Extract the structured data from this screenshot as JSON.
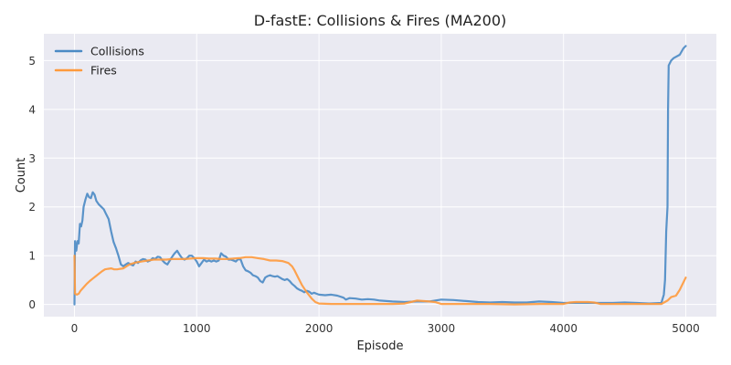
{
  "chart_data": {
    "type": "line",
    "title": "D-fastE: Collisions & Fires (MA200)",
    "xlabel": "Episode",
    "ylabel": "Count",
    "xlim": [
      -250,
      5250
    ],
    "ylim": [
      -0.25,
      5.55
    ],
    "xticks": [
      0,
      1000,
      2000,
      3000,
      4000,
      5000
    ],
    "yticks": [
      0,
      1,
      2,
      3,
      4,
      5
    ],
    "grid": true,
    "legend": "top-left",
    "series": [
      {
        "name": "Collisions",
        "color": "#4a8ac4",
        "points": [
          [
            0,
            0.0
          ],
          [
            5,
            1.3
          ],
          [
            15,
            1.1
          ],
          [
            25,
            1.3
          ],
          [
            35,
            1.25
          ],
          [
            45,
            1.65
          ],
          [
            55,
            1.6
          ],
          [
            65,
            1.72
          ],
          [
            75,
            2.0
          ],
          [
            90,
            2.15
          ],
          [
            105,
            2.27
          ],
          [
            120,
            2.2
          ],
          [
            135,
            2.18
          ],
          [
            150,
            2.3
          ],
          [
            165,
            2.25
          ],
          [
            180,
            2.12
          ],
          [
            200,
            2.05
          ],
          [
            220,
            2.0
          ],
          [
            240,
            1.95
          ],
          [
            260,
            1.85
          ],
          [
            280,
            1.75
          ],
          [
            300,
            1.5
          ],
          [
            320,
            1.28
          ],
          [
            340,
            1.15
          ],
          [
            360,
            1.0
          ],
          [
            380,
            0.82
          ],
          [
            400,
            0.78
          ],
          [
            420,
            0.82
          ],
          [
            440,
            0.85
          ],
          [
            460,
            0.82
          ],
          [
            480,
            0.8
          ],
          [
            500,
            0.88
          ],
          [
            520,
            0.85
          ],
          [
            540,
            0.9
          ],
          [
            560,
            0.93
          ],
          [
            580,
            0.92
          ],
          [
            600,
            0.88
          ],
          [
            620,
            0.9
          ],
          [
            640,
            0.95
          ],
          [
            660,
            0.93
          ],
          [
            680,
            0.98
          ],
          [
            700,
            0.97
          ],
          [
            720,
            0.9
          ],
          [
            740,
            0.85
          ],
          [
            760,
            0.82
          ],
          [
            780,
            0.9
          ],
          [
            800,
            0.98
          ],
          [
            820,
            1.05
          ],
          [
            840,
            1.1
          ],
          [
            860,
            1.02
          ],
          [
            880,
            0.95
          ],
          [
            900,
            0.92
          ],
          [
            920,
            0.95
          ],
          [
            940,
            1.0
          ],
          [
            960,
            1.0
          ],
          [
            980,
            0.95
          ],
          [
            1000,
            0.88
          ],
          [
            1020,
            0.78
          ],
          [
            1040,
            0.85
          ],
          [
            1060,
            0.92
          ],
          [
            1080,
            0.88
          ],
          [
            1100,
            0.9
          ],
          [
            1120,
            0.88
          ],
          [
            1140,
            0.9
          ],
          [
            1160,
            0.88
          ],
          [
            1180,
            0.9
          ],
          [
            1200,
            1.05
          ],
          [
            1220,
            1.0
          ],
          [
            1240,
            0.98
          ],
          [
            1260,
            0.92
          ],
          [
            1280,
            0.92
          ],
          [
            1300,
            0.9
          ],
          [
            1320,
            0.88
          ],
          [
            1340,
            0.93
          ],
          [
            1360,
            0.92
          ],
          [
            1380,
            0.78
          ],
          [
            1400,
            0.7
          ],
          [
            1420,
            0.68
          ],
          [
            1440,
            0.65
          ],
          [
            1460,
            0.6
          ],
          [
            1480,
            0.58
          ],
          [
            1500,
            0.55
          ],
          [
            1520,
            0.48
          ],
          [
            1540,
            0.45
          ],
          [
            1560,
            0.55
          ],
          [
            1580,
            0.58
          ],
          [
            1600,
            0.6
          ],
          [
            1620,
            0.58
          ],
          [
            1640,
            0.57
          ],
          [
            1660,
            0.58
          ],
          [
            1680,
            0.55
          ],
          [
            1700,
            0.52
          ],
          [
            1720,
            0.5
          ],
          [
            1740,
            0.52
          ],
          [
            1760,
            0.48
          ],
          [
            1780,
            0.42
          ],
          [
            1800,
            0.38
          ],
          [
            1820,
            0.33
          ],
          [
            1840,
            0.3
          ],
          [
            1860,
            0.28
          ],
          [
            1880,
            0.25
          ],
          [
            1900,
            0.28
          ],
          [
            1920,
            0.26
          ],
          [
            1940,
            0.22
          ],
          [
            1960,
            0.24
          ],
          [
            1980,
            0.22
          ],
          [
            2000,
            0.2
          ],
          [
            2050,
            0.19
          ],
          [
            2100,
            0.2
          ],
          [
            2150,
            0.18
          ],
          [
            2200,
            0.14
          ],
          [
            2220,
            0.1
          ],
          [
            2250,
            0.13
          ],
          [
            2300,
            0.12
          ],
          [
            2350,
            0.1
          ],
          [
            2400,
            0.11
          ],
          [
            2450,
            0.1
          ],
          [
            2500,
            0.08
          ],
          [
            2600,
            0.06
          ],
          [
            2700,
            0.05
          ],
          [
            2800,
            0.06
          ],
          [
            2900,
            0.06
          ],
          [
            3000,
            0.1
          ],
          [
            3100,
            0.09
          ],
          [
            3200,
            0.07
          ],
          [
            3300,
            0.05
          ],
          [
            3400,
            0.04
          ],
          [
            3500,
            0.05
          ],
          [
            3600,
            0.04
          ],
          [
            3700,
            0.04
          ],
          [
            3800,
            0.06
          ],
          [
            3900,
            0.05
          ],
          [
            4000,
            0.03
          ],
          [
            4100,
            0.03
          ],
          [
            4200,
            0.03
          ],
          [
            4300,
            0.03
          ],
          [
            4400,
            0.03
          ],
          [
            4500,
            0.04
          ],
          [
            4600,
            0.03
          ],
          [
            4700,
            0.02
          ],
          [
            4800,
            0.03
          ],
          [
            4820,
            0.2
          ],
          [
            4830,
            0.5
          ],
          [
            4840,
            1.5
          ],
          [
            4850,
            2.0
          ],
          [
            4855,
            4.0
          ],
          [
            4860,
            4.9
          ],
          [
            4880,
            5.0
          ],
          [
            4900,
            5.05
          ],
          [
            4950,
            5.12
          ],
          [
            4980,
            5.25
          ],
          [
            5000,
            5.3
          ]
        ]
      },
      {
        "name": "Fires",
        "color": "#ff9a3c",
        "points": [
          [
            0,
            1.0
          ],
          [
            5,
            0.22
          ],
          [
            20,
            0.2
          ],
          [
            35,
            0.22
          ],
          [
            50,
            0.28
          ],
          [
            75,
            0.35
          ],
          [
            100,
            0.42
          ],
          [
            125,
            0.48
          ],
          [
            150,
            0.53
          ],
          [
            175,
            0.58
          ],
          [
            200,
            0.63
          ],
          [
            225,
            0.68
          ],
          [
            250,
            0.72
          ],
          [
            275,
            0.73
          ],
          [
            300,
            0.74
          ],
          [
            325,
            0.72
          ],
          [
            350,
            0.72
          ],
          [
            375,
            0.73
          ],
          [
            400,
            0.74
          ],
          [
            425,
            0.78
          ],
          [
            450,
            0.82
          ],
          [
            500,
            0.86
          ],
          [
            550,
            0.88
          ],
          [
            600,
            0.9
          ],
          [
            650,
            0.92
          ],
          [
            700,
            0.92
          ],
          [
            750,
            0.92
          ],
          [
            800,
            0.93
          ],
          [
            850,
            0.93
          ],
          [
            900,
            0.93
          ],
          [
            950,
            0.94
          ],
          [
            1000,
            0.95
          ],
          [
            1050,
            0.95
          ],
          [
            1100,
            0.94
          ],
          [
            1150,
            0.94
          ],
          [
            1200,
            0.93
          ],
          [
            1250,
            0.93
          ],
          [
            1300,
            0.94
          ],
          [
            1350,
            0.95
          ],
          [
            1400,
            0.97
          ],
          [
            1450,
            0.97
          ],
          [
            1500,
            0.95
          ],
          [
            1550,
            0.93
          ],
          [
            1600,
            0.9
          ],
          [
            1650,
            0.9
          ],
          [
            1700,
            0.89
          ],
          [
            1750,
            0.85
          ],
          [
            1780,
            0.78
          ],
          [
            1800,
            0.7
          ],
          [
            1830,
            0.55
          ],
          [
            1860,
            0.4
          ],
          [
            1900,
            0.25
          ],
          [
            1940,
            0.12
          ],
          [
            1970,
            0.05
          ],
          [
            2000,
            0.02
          ],
          [
            2100,
            0.01
          ],
          [
            2200,
            0.01
          ],
          [
            2400,
            0.01
          ],
          [
            2600,
            0.01
          ],
          [
            2700,
            0.02
          ],
          [
            2750,
            0.05
          ],
          [
            2800,
            0.08
          ],
          [
            2850,
            0.07
          ],
          [
            2900,
            0.06
          ],
          [
            2950,
            0.05
          ],
          [
            3000,
            0.01
          ],
          [
            3200,
            0.01
          ],
          [
            3400,
            0.01
          ],
          [
            3600,
            0.0
          ],
          [
            3800,
            0.01
          ],
          [
            4000,
            0.01
          ],
          [
            4050,
            0.04
          ],
          [
            4100,
            0.05
          ],
          [
            4200,
            0.05
          ],
          [
            4250,
            0.04
          ],
          [
            4300,
            0.01
          ],
          [
            4500,
            0.01
          ],
          [
            4700,
            0.01
          ],
          [
            4800,
            0.01
          ],
          [
            4850,
            0.08
          ],
          [
            4880,
            0.15
          ],
          [
            4920,
            0.18
          ],
          [
            4950,
            0.3
          ],
          [
            5000,
            0.55
          ]
        ]
      }
    ]
  }
}
